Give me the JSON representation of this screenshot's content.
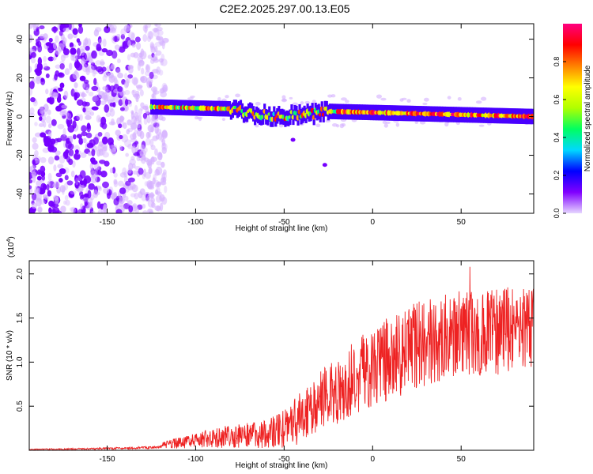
{
  "title": "C2E2.2025.297.00.13.E05",
  "chart_data": [
    {
      "type": "heatmap",
      "xlabel": "Height of straight line (km)",
      "ylabel": "Frequency (Hz)",
      "xlim": [
        -194,
        91
      ],
      "ylim": [
        -50,
        48
      ],
      "xticks": [
        -150,
        -100,
        -50,
        0,
        50
      ],
      "xtick_labels": [
        "-150",
        "-100",
        "-50",
        "0",
        "50"
      ],
      "yticks": [
        -40,
        -20,
        0,
        20,
        40
      ],
      "ytick_labels": [
        "-40",
        "-20",
        "0",
        "20",
        "40"
      ],
      "grid": false,
      "colorbar": {
        "label": "Normalized spectral amplitude",
        "range": [
          0,
          1
        ],
        "ticks": [
          0.0,
          0.2,
          0.4,
          0.6,
          0.8
        ],
        "tick_labels": [
          "0.0",
          "0.2",
          "0.4",
          "0.6",
          "0.8"
        ],
        "colors": [
          "#e6d6ff",
          "#8000ff",
          "#0000ff",
          "#00d8ff",
          "#00ff60",
          "#b0ff00",
          "#ffff00",
          "#ff8000",
          "#ff0000",
          "#ff0080"
        ]
      },
      "features": {
        "noise_region_x_range": [
          -194,
          -125
        ],
        "signal_band_x_range": [
          -125,
          91
        ],
        "signal_band_center_hz": [
          5,
          0
        ],
        "signal_band_halfwidth_hz": 2.5,
        "isolated_blobs": [
          {
            "x": -45,
            "y": -12
          },
          {
            "x": -27,
            "y": -25
          }
        ]
      }
    },
    {
      "type": "line",
      "xlabel": "Height of straight line (km)",
      "ylabel": "SNR (10 * v/v)",
      "y_scale_label": "(x10",
      "y_scale_exponent": "4",
      "xlim": [
        -194,
        91
      ],
      "ylim": [
        0,
        2.15
      ],
      "xticks": [
        -150,
        -100,
        -50,
        0,
        50
      ],
      "xtick_labels": [
        "-150",
        "-100",
        "-50",
        "0",
        "50"
      ],
      "yticks": [
        0.5,
        1.0,
        1.5,
        2.0
      ],
      "ytick_labels": [
        "0.5",
        "1.0",
        "1.5",
        "2.0"
      ],
      "grid": false,
      "series": [
        {
          "name": "SNR",
          "color": "#ee2222",
          "trend_x": [
            -194,
            -150,
            -125,
            -118,
            -100,
            -80,
            -60,
            -50,
            -40,
            -25,
            -10,
            0,
            20,
            40,
            60,
            91
          ],
          "trend_y": [
            0.01,
            0.02,
            0.03,
            0.06,
            0.11,
            0.16,
            0.18,
            0.24,
            0.38,
            0.62,
            0.82,
            0.95,
            1.15,
            1.28,
            1.34,
            1.38
          ],
          "spread_y": [
            0.005,
            0.01,
            0.015,
            0.04,
            0.09,
            0.13,
            0.16,
            0.22,
            0.3,
            0.38,
            0.42,
            0.45,
            0.5,
            0.5,
            0.5,
            0.5
          ],
          "peak_value": 2.08,
          "peak_x": 55
        }
      ]
    }
  ]
}
